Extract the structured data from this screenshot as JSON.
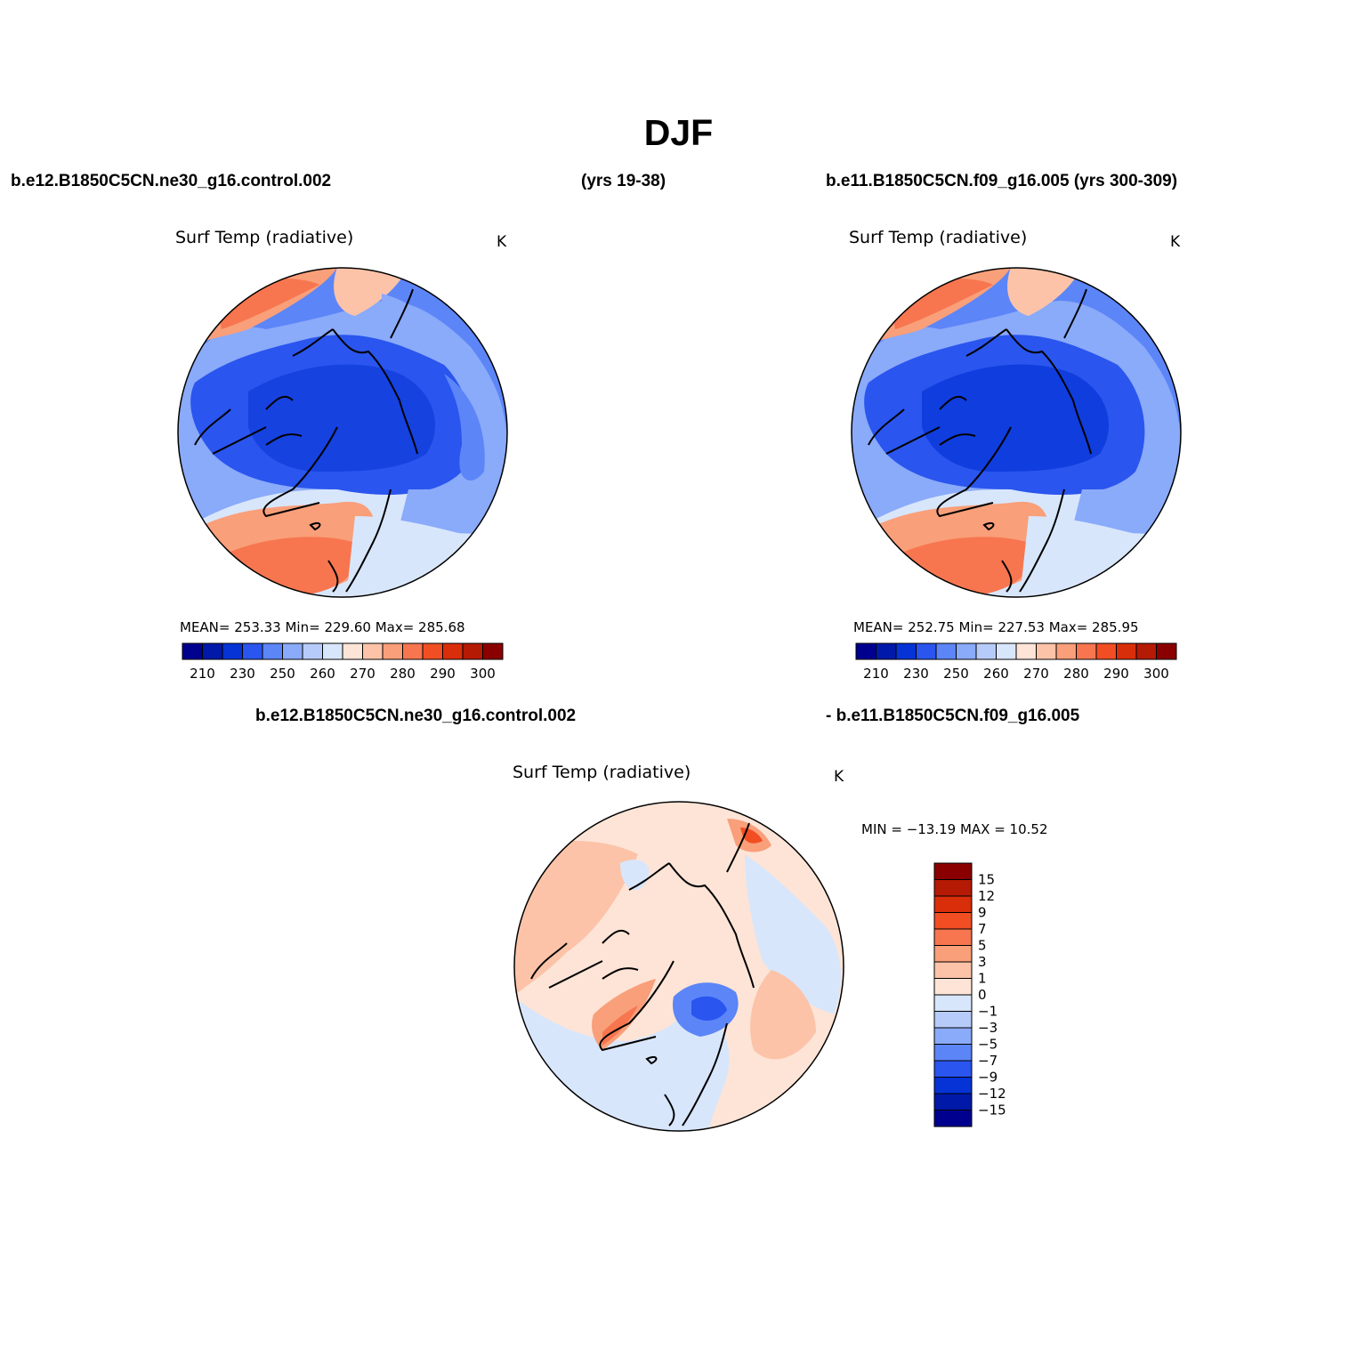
{
  "page": {
    "title": "DJF",
    "header_left": "b.e12.B1850C5CN.ne30_g16.control.002",
    "header_mid": "(yrs 19-38)",
    "header_right": "b.e11.B1850C5CN.f09_g16.005 (yrs 300-309)",
    "diff_left": "b.e12.B1850C5CN.ne30_g16.control.002",
    "diff_right": "- b.e11.B1850C5CN.f09_g16.005"
  },
  "panels": [
    {
      "variable": "Surf Temp (radiative)",
      "units": "K",
      "stats_text": "MEAN= 253.33   Min= 229.60   Max= 285.68",
      "mean": 253.33,
      "min": 229.6,
      "max": 285.68
    },
    {
      "variable": "Surf Temp (radiative)",
      "units": "K",
      "stats_text": "MEAN= 252.75   Min= 227.53   Max= 285.95",
      "mean": 252.75,
      "min": 227.53,
      "max": 285.95
    }
  ],
  "diff_panel": {
    "variable": "Surf Temp (radiative)",
    "units": "K",
    "stats_text": "MIN = −13.19 MAX =  10.52",
    "min": -13.19,
    "max": 10.52
  },
  "colorbar_main": {
    "colors": [
      "#00008f",
      "#0019a8",
      "#0533d6",
      "#2a55ee",
      "#5c85f7",
      "#8aaafa",
      "#b6cbf9",
      "#d8e6fb",
      "#fde4d6",
      "#fcc3a8",
      "#f99f7a",
      "#f7764f",
      "#f24e24",
      "#d92e0a",
      "#b51a04",
      "#8a0000"
    ],
    "tick_labels": [
      "210",
      "230",
      "250",
      "260",
      "270",
      "280",
      "290",
      "300"
    ]
  },
  "colorbar_diff": {
    "colors": [
      "#8a0000",
      "#b51a04",
      "#d92e0a",
      "#f24e24",
      "#f7764f",
      "#f99f7a",
      "#fcc3a8",
      "#fde4d6",
      "#d8e6fb",
      "#b6cbf9",
      "#8aaafa",
      "#5c85f7",
      "#2a55ee",
      "#0533d6",
      "#0019a8",
      "#00008f"
    ],
    "tick_labels": [
      "15",
      "12",
      "9",
      "7",
      "5",
      "3",
      "1",
      "0",
      "−1",
      "−3",
      "−5",
      "−7",
      "−9",
      "−12",
      "−15"
    ]
  }
}
